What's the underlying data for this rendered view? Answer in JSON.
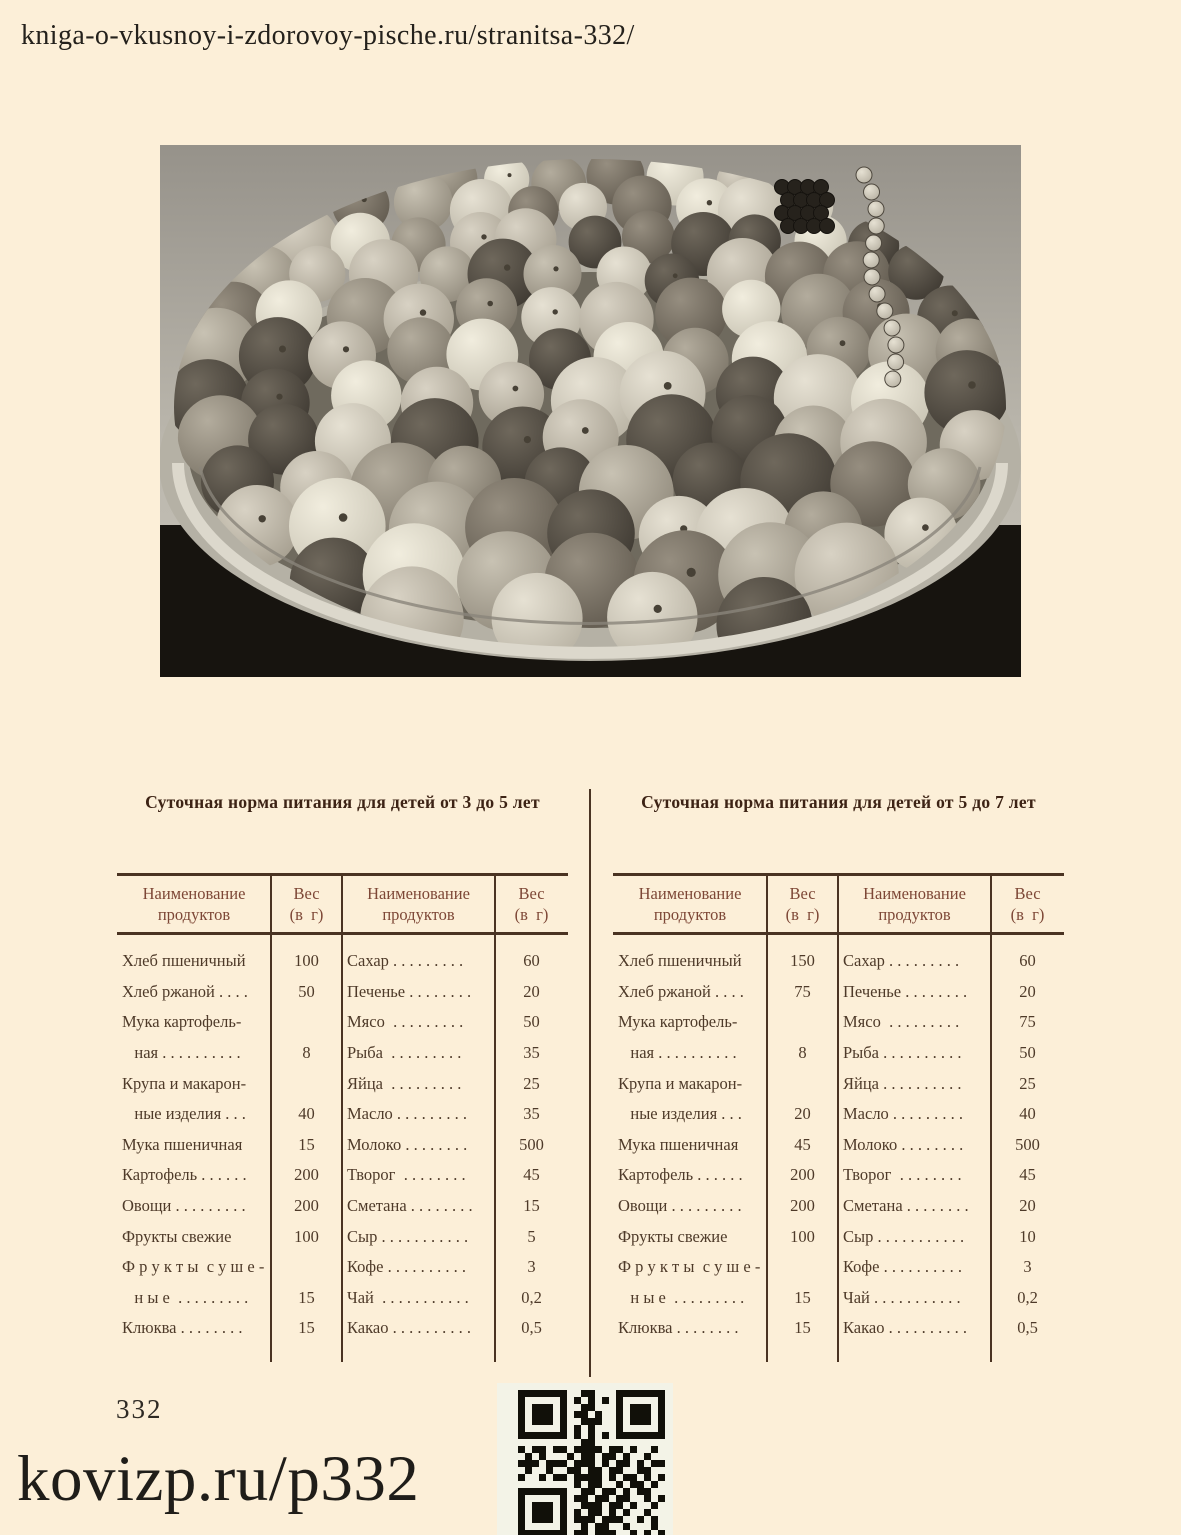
{
  "page": {
    "url": "kniga-o-vkusnoy-i-zdorovoy-pische.ru/stranitsa-332/",
    "number": "332",
    "short_link": "kovizp.ru/p332",
    "background_color": "#fcefd8",
    "ink_color": "#24211c",
    "table_line_color": "#4a3322",
    "header_text_color": "#7d4736"
  },
  "photo": {
    "description": "black-and-white photograph of a large platter piled with fresh fruit (apples, pears, plums, grapes)"
  },
  "tables": [
    {
      "title": "Суточная норма питания для детей от 3 до 5 лет",
      "columns": [
        {
          "header": [
            "Наименование",
            "продуктов"
          ]
        },
        {
          "header": [
            "Вес",
            "(в  г)"
          ]
        },
        {
          "header": [
            "Наименование",
            "продуктов"
          ]
        },
        {
          "header": [
            "Вес",
            "(в  г)"
          ]
        }
      ],
      "rows": [
        [
          "Хлеб пшеничный",
          "100",
          "Сахар . . . . . . . . .",
          "60"
        ],
        [
          "Хлеб ржаной . . . .",
          "50",
          "Печенье . . . . . . . .",
          "20"
        ],
        [
          "Мука картофель-",
          "",
          "Мясо  . . . . . . . . .",
          "50"
        ],
        [
          "   ная . . . . . . . . . .",
          "8",
          "Рыба  . . . . . . . . .",
          "35"
        ],
        [
          "Крупа и макарон-",
          "",
          "Яйца  . . . . . . . . .",
          "25"
        ],
        [
          "   ные изделия . . .",
          "40",
          "Масло . . . . . . . . .",
          "35"
        ],
        [
          "Мука пшеничная",
          "15",
          "Молоко . . . . . . . .",
          "500"
        ],
        [
          "Картофель . . . . . .",
          "200",
          "Творог  . . . . . . . .",
          "45"
        ],
        [
          "Овощи . . . . . . . . .",
          "200",
          "Сметана . . . . . . . .",
          "15"
        ],
        [
          "Фрукты свежие",
          "100",
          "Сыр . . . . . . . . . . .",
          "5"
        ],
        [
          "Ф р у к т ы  с у ш е -",
          "",
          "Кофе . . . . . . . . . .",
          "3"
        ],
        [
          "   н ы е  . . . . . . . . .",
          "15",
          "Чай  . . . . . . . . . . .",
          "0,2"
        ],
        [
          "Клюква . . . . . . . .",
          "15",
          "Какао . . . . . . . . . .",
          "0,5"
        ]
      ]
    },
    {
      "title": "Суточная норма питания для детей от 5 до 7 лет",
      "columns": [
        {
          "header": [
            "Наименование",
            "продуктов"
          ]
        },
        {
          "header": [
            "Вес",
            "(в  г)"
          ]
        },
        {
          "header": [
            "Наименование",
            "продуктов"
          ]
        },
        {
          "header": [
            "Вес",
            "(в  г)"
          ]
        }
      ],
      "rows": [
        [
          "Хлеб пшеничный",
          "150",
          "Сахар . . . . . . . . .",
          "60"
        ],
        [
          "Хлеб ржаной . . . .",
          "75",
          "Печенье . . . . . . . .",
          "20"
        ],
        [
          "Мука картофель-",
          "",
          "Мясо  . . . . . . . . .",
          "75"
        ],
        [
          "   ная . . . . . . . . . .",
          "8",
          "Рыба . . . . . . . . . .",
          "50"
        ],
        [
          "Крупа и макарон-",
          "",
          "Яйца . . . . . . . . . .",
          "25"
        ],
        [
          "   ные изделия . . .",
          "20",
          "Масло . . . . . . . . .",
          "40"
        ],
        [
          "Мука пшеничная",
          "45",
          "Молоко . . . . . . . .",
          "500"
        ],
        [
          "Картофель . . . . . .",
          "200",
          "Творог  . . . . . . . .",
          "45"
        ],
        [
          "Овощи . . . . . . . . .",
          "200",
          "Сметана . . . . . . . .",
          "20"
        ],
        [
          "Фрукты свежие",
          "100",
          "Сыр . . . . . . . . . . .",
          "10"
        ],
        [
          "Ф р у к т ы  с у ш е -",
          "",
          "Кофе . . . . . . . . . .",
          "3"
        ],
        [
          "   н ы е  . . . . . . . . .",
          "15",
          "Чай . . . . . . . . . . .",
          "0,2"
        ],
        [
          "Клюква . . . . . . . .",
          "15",
          "Какао . . . . . . . . . .",
          "0,5"
        ]
      ]
    }
  ],
  "qr": {
    "label": "qr-code",
    "modules": [
      "111111100110001111111",
      "100000101010101000001",
      "101110100110001011101",
      "101110101101001011101",
      "101110100111001011101",
      "100000101010001000001",
      "111111101010101111111",
      "000000000110000000000",
      "101101101111011010010",
      "010100010110110100100",
      "111011101110101101011",
      "010010011011011001100",
      "100101101111010110101",
      "000000001011001011010",
      "111111100110110101100",
      "100000101101101100101",
      "101110100111011010010",
      "101110101011010100100",
      "101110101110111001010",
      "100000100101100100010",
      "111111101101110010101"
    ]
  }
}
